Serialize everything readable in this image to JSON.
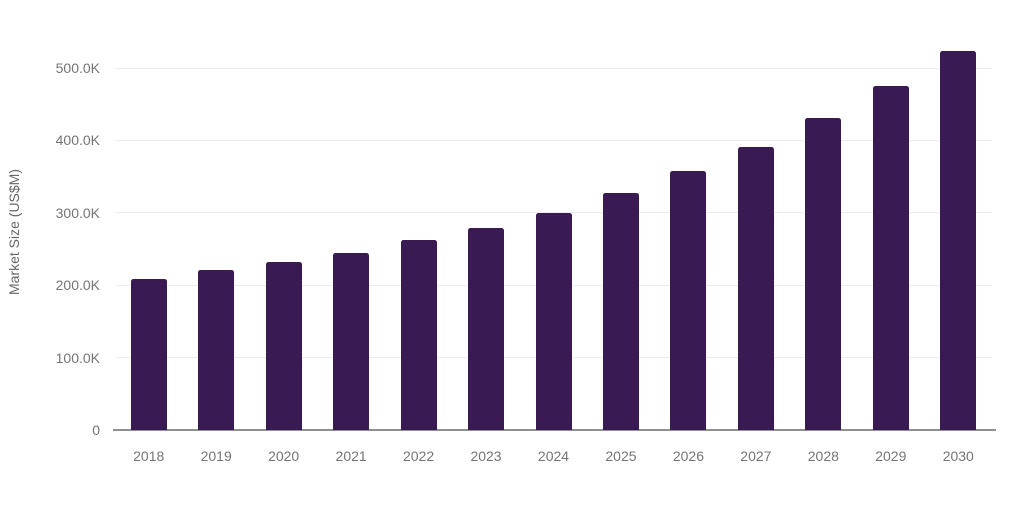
{
  "chart_data": {
    "type": "bar",
    "title": "",
    "xlabel": "",
    "ylabel": "Market Size (US$M)",
    "categories": [
      "2018",
      "2019",
      "2020",
      "2021",
      "2022",
      "2023",
      "2024",
      "2025",
      "2026",
      "2027",
      "2028",
      "2029",
      "2030"
    ],
    "values": [
      208.0,
      220.4,
      231.8,
      244.8,
      261.9,
      278.5,
      300.2,
      327.3,
      357.6,
      391.2,
      431.2,
      474.9,
      523.4
    ],
    "values_unit": "K (US$M)",
    "ylim": [
      0,
      531
    ],
    "yticks": [
      0,
      100,
      200,
      300,
      400,
      500
    ],
    "ytick_labels": [
      "0",
      "100.0K",
      "200.0K",
      "300.0K",
      "400.0K",
      "500.0K"
    ],
    "grid": true,
    "legend": "none",
    "bar_color": "#3a1a52",
    "gridline_color": "#ededed",
    "baseline_color": "#8f8f8f",
    "tick_label_color": "#757575",
    "axis_title_color": "#666666"
  }
}
